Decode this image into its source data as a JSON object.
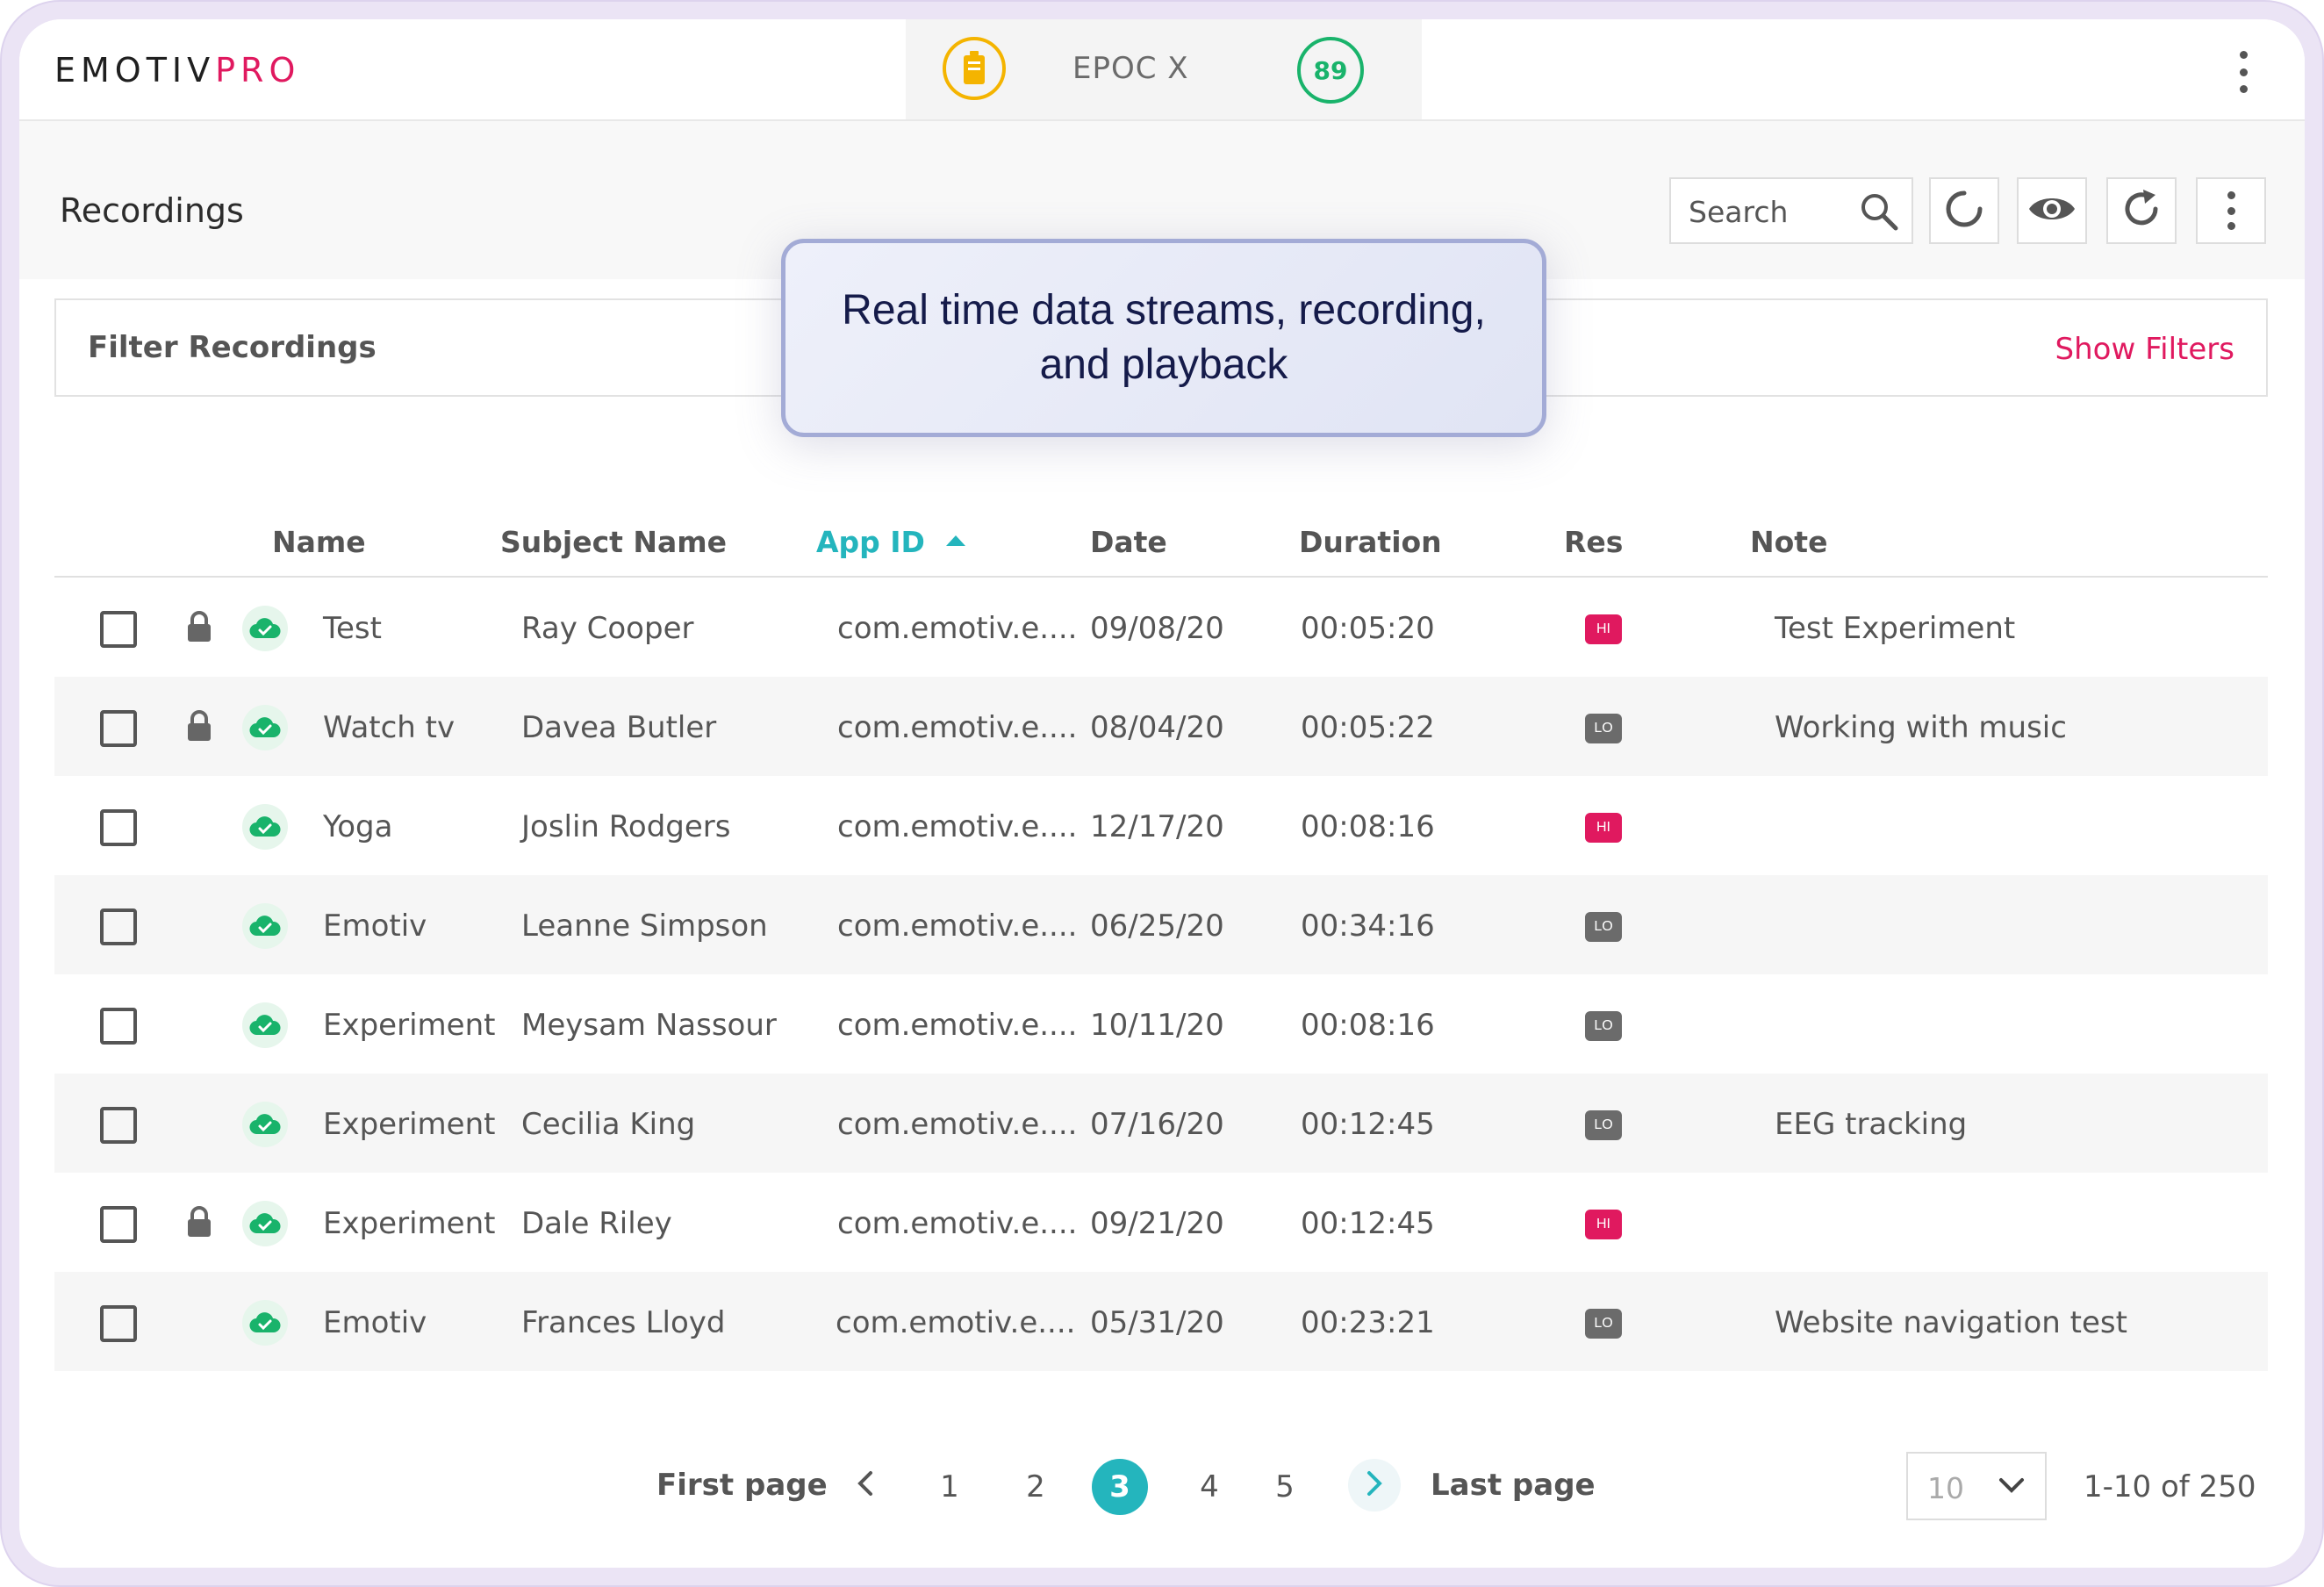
{
  "app": {
    "logo_primary": "EMOTIV",
    "logo_accent": "PRO",
    "brand_color": "#e0195f",
    "accent_color": "#24b5bd"
  },
  "device": {
    "name": "EPOC X",
    "battery_icon": "battery-icon",
    "contact_quality": "89"
  },
  "page": {
    "title": "Recordings"
  },
  "toolbar": {
    "search_placeholder": "Search",
    "icons": [
      "search-icon",
      "loading-spinner-icon",
      "eye-icon",
      "refresh-icon",
      "more-vertical-icon"
    ]
  },
  "filters": {
    "label": "Filter Recordings",
    "toggle_label": "Show Filters"
  },
  "callout": {
    "text": "Real time data streams, recording, and playback"
  },
  "table": {
    "columns": {
      "name": "Name",
      "subject": "Subject Name",
      "app_id": "App ID",
      "date": "Date",
      "duration": "Duration",
      "res": "Res",
      "note": "Note"
    },
    "sorted_by": "App ID",
    "sort_direction": "ascending",
    "rows": [
      {
        "locked": true,
        "name": "Test",
        "subject": "Ray Cooper",
        "app_id": "com.emotiv.e....",
        "date": "09/08/20",
        "duration": "00:05:20",
        "res": "HI",
        "note": "Test Experiment"
      },
      {
        "locked": true,
        "name": "Watch tv",
        "subject": "Davea Butler",
        "app_id": "com.emotiv.e....",
        "date": "08/04/20",
        "duration": "00:05:22",
        "res": "LO",
        "note": "Working with music"
      },
      {
        "locked": false,
        "name": "Yoga",
        "subject": "Joslin Rodgers",
        "app_id": "com.emotiv.e....",
        "date": "12/17/20",
        "duration": "00:08:16",
        "res": "HI",
        "note": ""
      },
      {
        "locked": false,
        "name": "Emotiv",
        "subject": "Leanne Simpson",
        "app_id": "com.emotiv.e....",
        "date": "06/25/20",
        "duration": "00:34:16",
        "res": "LO",
        "note": ""
      },
      {
        "locked": false,
        "name": "Experiment",
        "subject": "Meysam Nassour",
        "app_id": "com.emotiv.e....",
        "date": "10/11/20",
        "duration": "00:08:16",
        "res": "LO",
        "note": ""
      },
      {
        "locked": false,
        "name": "Experiment",
        "subject": "Cecilia King",
        "app_id": "com.emotiv.e....",
        "date": "07/16/20",
        "duration": "00:12:45",
        "res": "LO",
        "note": "EEG tracking"
      },
      {
        "locked": true,
        "name": "Experiment",
        "subject": "Dale Riley",
        "app_id": "com.emotiv.e....",
        "date": "09/21/20",
        "duration": "00:12:45",
        "res": "HI",
        "note": ""
      },
      {
        "locked": false,
        "name": "Emotiv",
        "subject": "Frances Lloyd",
        "app_id": "com.emotiv.e....",
        "date": "05/31/20",
        "duration": "00:23:21",
        "res": "LO",
        "note": "Website navigation test"
      }
    ]
  },
  "pagination": {
    "first_label": "First page",
    "last_label": "Last page",
    "pages": [
      "1",
      "2",
      "3",
      "4",
      "5"
    ],
    "current_page": "3",
    "per_page": "10",
    "range": "1-10 of 250"
  }
}
